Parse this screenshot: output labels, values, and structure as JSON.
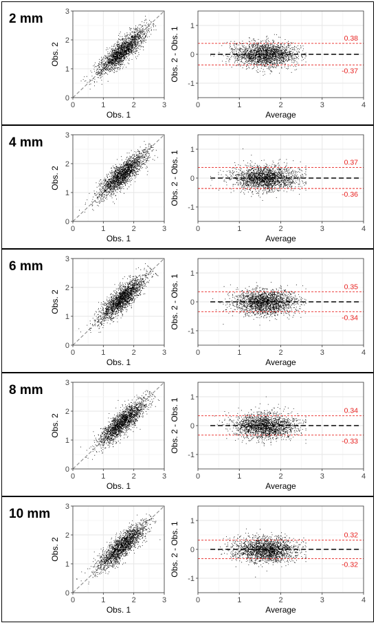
{
  "chart_data": [
    {
      "label": "2 mm",
      "scatter": {
        "type": "scatter",
        "xlabel": "Obs. 1",
        "ylabel": "Obs. 2",
        "xlim": [
          0,
          3
        ],
        "ylim": [
          0,
          3
        ],
        "xticks": [
          0,
          1,
          2,
          3
        ],
        "yticks": [
          0,
          1,
          2,
          3
        ],
        "identity_line": true,
        "grid": true
      },
      "bland_altman": {
        "type": "scatter",
        "xlabel": "Average",
        "ylabel": "Obs. 2 - Obs. 1",
        "xlim": [
          0,
          4
        ],
        "ylim": [
          -1.5,
          1.5
        ],
        "xticks": [
          0,
          1,
          2,
          3,
          4
        ],
        "yticks": [
          -1,
          0,
          1
        ],
        "mean_line": 0,
        "upper_loa": 0.38,
        "lower_loa": -0.37,
        "grid": true
      }
    },
    {
      "label": "4 mm",
      "scatter": {
        "type": "scatter",
        "xlabel": "Obs. 1",
        "ylabel": "Obs. 2",
        "xlim": [
          0,
          3
        ],
        "ylim": [
          0,
          3
        ],
        "xticks": [
          0,
          1,
          2,
          3
        ],
        "yticks": [
          0,
          1,
          2,
          3
        ],
        "identity_line": true,
        "grid": true
      },
      "bland_altman": {
        "type": "scatter",
        "xlabel": "Average",
        "ylabel": "Obs. 2 - Obs. 1",
        "xlim": [
          0,
          4
        ],
        "ylim": [
          -1.5,
          1.5
        ],
        "xticks": [
          0,
          1,
          2,
          3,
          4
        ],
        "yticks": [
          -1,
          0,
          1
        ],
        "mean_line": 0,
        "upper_loa": 0.37,
        "lower_loa": -0.36,
        "grid": true
      }
    },
    {
      "label": "6 mm",
      "scatter": {
        "type": "scatter",
        "xlabel": "Obs. 1",
        "ylabel": "Obs. 2",
        "xlim": [
          0,
          3
        ],
        "ylim": [
          0,
          3
        ],
        "xticks": [
          0,
          1,
          2,
          3
        ],
        "yticks": [
          0,
          1,
          2,
          3
        ],
        "identity_line": true,
        "grid": true
      },
      "bland_altman": {
        "type": "scatter",
        "xlabel": "Average",
        "ylabel": "Obs. 2 - Obs. 1",
        "xlim": [
          0,
          4
        ],
        "ylim": [
          -1.5,
          1.5
        ],
        "xticks": [
          0,
          1,
          2,
          3,
          4
        ],
        "yticks": [
          -1,
          0,
          1
        ],
        "mean_line": 0,
        "upper_loa": 0.35,
        "lower_loa": -0.34,
        "grid": true
      }
    },
    {
      "label": "8 mm",
      "scatter": {
        "type": "scatter",
        "xlabel": "Obs. 1",
        "ylabel": "Obs. 2",
        "xlim": [
          0,
          3
        ],
        "ylim": [
          0,
          3
        ],
        "xticks": [
          0,
          1,
          2,
          3
        ],
        "yticks": [
          0,
          1,
          2,
          3
        ],
        "identity_line": true,
        "grid": true
      },
      "bland_altman": {
        "type": "scatter",
        "xlabel": "Average",
        "ylabel": "Obs. 2 - Obs. 1",
        "xlim": [
          0,
          4
        ],
        "ylim": [
          -1.5,
          1.5
        ],
        "xticks": [
          0,
          1,
          2,
          3,
          4
        ],
        "yticks": [
          -1,
          0,
          1
        ],
        "mean_line": 0,
        "upper_loa": 0.34,
        "lower_loa": -0.33,
        "grid": true
      }
    },
    {
      "label": "10 mm",
      "scatter": {
        "type": "scatter",
        "xlabel": "Obs. 1",
        "ylabel": "Obs. 2",
        "xlim": [
          0,
          3
        ],
        "ylim": [
          0,
          3
        ],
        "xticks": [
          0,
          1,
          2,
          3
        ],
        "yticks": [
          0,
          1,
          2,
          3
        ],
        "identity_line": true,
        "grid": true
      },
      "bland_altman": {
        "type": "scatter",
        "xlabel": "Average",
        "ylabel": "Obs. 2 - Obs. 1",
        "xlim": [
          0,
          4
        ],
        "ylim": [
          -1.5,
          1.5
        ],
        "xticks": [
          0,
          1,
          2,
          3,
          4
        ],
        "yticks": [
          -1,
          0,
          1
        ],
        "mean_line": 0,
        "upper_loa": 0.32,
        "lower_loa": -0.32,
        "grid": true
      }
    }
  ],
  "colors": {
    "points": "#000000",
    "grid": "#e6e6e6",
    "identity_line": "#8a8a8a",
    "mean_line": "#000000",
    "loa": "#e8201e",
    "border": "#000000"
  }
}
